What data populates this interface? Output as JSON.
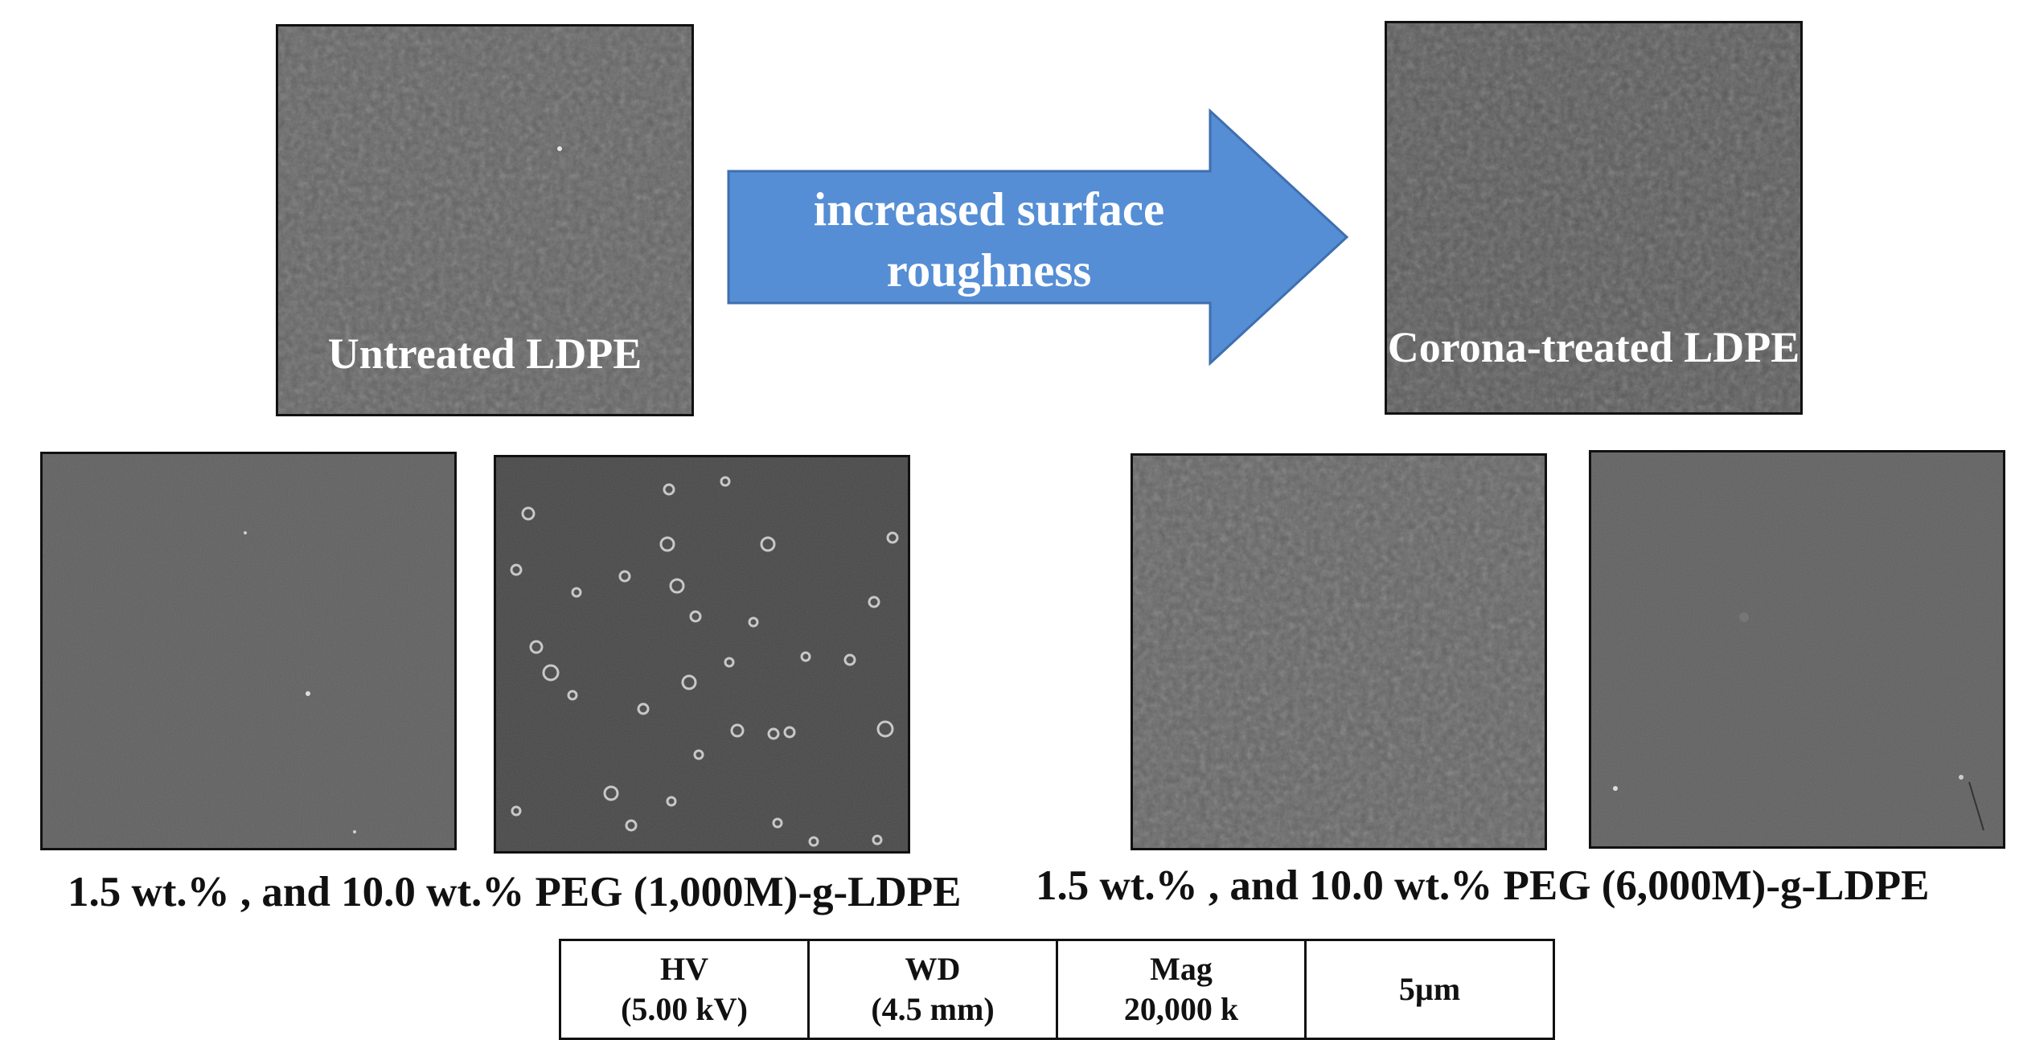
{
  "images": {
    "untreated": {
      "label": "Untreated LDPE"
    },
    "corona": {
      "label": "Corona-treated LDPE"
    },
    "peg1000_low": {
      "label": ""
    },
    "peg1000_high": {
      "label": ""
    },
    "peg6000_low": {
      "label": ""
    },
    "peg6000_high": {
      "label": ""
    }
  },
  "arrow": {
    "line1": "increased surface",
    "line2": "roughness",
    "color": "#558ed5",
    "border_color": "#3f6fae"
  },
  "captions": {
    "peg1000": "1.5 wt.% , and 10.0 wt.% PEG (1,000M)-g-LDPE",
    "peg6000": "1.5 wt.% , and 10.0 wt.% PEG (6,000M)-g-LDPE"
  },
  "scale_bar": {
    "hv_label": "HV",
    "hv_value": "(5.00 kV)",
    "wd_label": "WD",
    "wd_value": "(4.5 mm)",
    "mag_label": "Mag",
    "mag_value": "20,000 k",
    "scale": "5µm"
  },
  "colors": {
    "sem_gray": "#5c5c5c",
    "sem_dark": "#4e4e4e",
    "sem_light": "#6b6b6b"
  }
}
